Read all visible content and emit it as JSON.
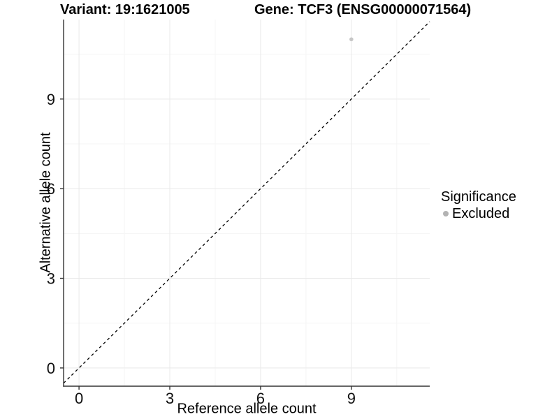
{
  "titles": {
    "variant": "Variant: 19:1621005",
    "gene": "Gene: TCF3 (ENSG00000071564)"
  },
  "legend": {
    "title": "Significance",
    "position": "right",
    "items": [
      {
        "label": "Excluded",
        "key_color": "#b3b3b3",
        "key_shape": "circle"
      }
    ]
  },
  "colors": {
    "background": "#ffffff",
    "axis_line": "#333333",
    "tick_mark": "#333333",
    "tick_text": "#111111",
    "grid_major": "#e9e9e9",
    "grid_minor": "#f5f5f5",
    "dashed_line": "#000000",
    "point_fill": "#c6c6c6",
    "legend_key_fill": "#b3b3b3"
  },
  "chart_data": {
    "type": "scatter",
    "title": "Variant: 19:1621005   |   Gene: TCF3 (ENSG00000071564)",
    "xlabel": "Reference allele count",
    "ylabel": "Alternative allele count",
    "xlim": [
      -0.51,
      11.59
    ],
    "ylim": [
      -0.61,
      11.66
    ],
    "x_ticks": [
      0,
      3,
      6,
      9
    ],
    "y_ticks": [
      0,
      3,
      6,
      9
    ],
    "x_minor_ticks": [
      1.5,
      4.5,
      7.5,
      10.5
    ],
    "y_minor_ticks": [
      1.5,
      4.5,
      7.5,
      10.5
    ],
    "grid": true,
    "legend_position": "right",
    "series": [
      {
        "name": "Excluded",
        "color": "#c6c6c6",
        "points": [
          [
            9,
            11
          ]
        ]
      }
    ],
    "reference_line": {
      "type": "identity",
      "slope": 1,
      "intercept": 0,
      "style": "dashed"
    }
  }
}
